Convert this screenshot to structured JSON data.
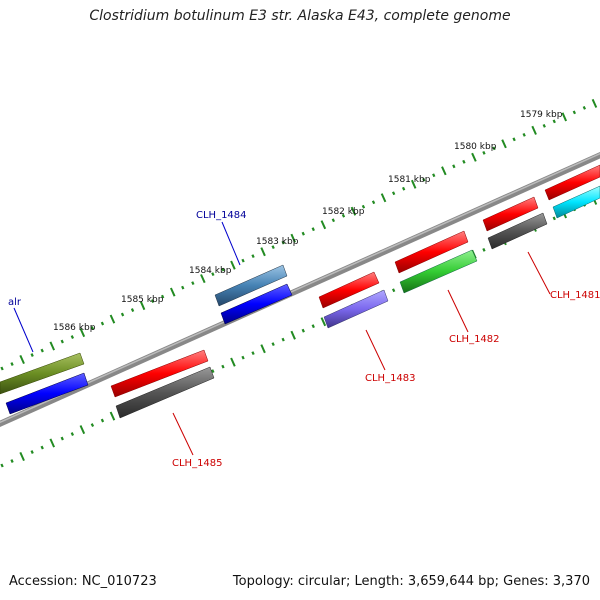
{
  "title": "Clostridium botulinum E3 str. Alaska E43, complete genome",
  "footer": {
    "accession": "Accession: NC_010723",
    "info": "Topology: circular; Length: 3,659,644 bp; Genes: 3,370"
  },
  "scale_labels": [
    "1579 kbp",
    "1580 kbp",
    "1581 kbp",
    "1582 kbp",
    "1583 kbp",
    "1584 kbp",
    "1585 kbp",
    "1586 kbp"
  ],
  "genes": [
    {
      "name": "CLH_1481",
      "label_color": "#cc0000",
      "colors": [
        "#ff0000",
        "#00e5ff"
      ]
    },
    {
      "name": "CLH_1482",
      "label_color": "#cc0000",
      "colors": [
        "#ff0000",
        "#33cc33"
      ]
    },
    {
      "name": "CLH_1483",
      "label_color": "#cc0000",
      "colors": [
        "#ff0000",
        "#7b68ee"
      ]
    },
    {
      "name": "CLH_1484",
      "label_color": "#000099",
      "colors": [
        "#4682b4",
        "#0000ff"
      ]
    },
    {
      "name": "CLH_1485",
      "label_color": "#cc0000",
      "colors": [
        "#ff0000",
        "#555555"
      ]
    },
    {
      "name": "alr",
      "label_color": "#000099",
      "colors": [
        "#6b8e23",
        "#0000ff"
      ]
    }
  ],
  "track_colors": {
    "backbone": "#888888",
    "outer_ticks": "#228b22",
    "inner_ticks": "#228b22",
    "label_line_red": "#cc0000",
    "label_line_blue": "#0000cc"
  }
}
